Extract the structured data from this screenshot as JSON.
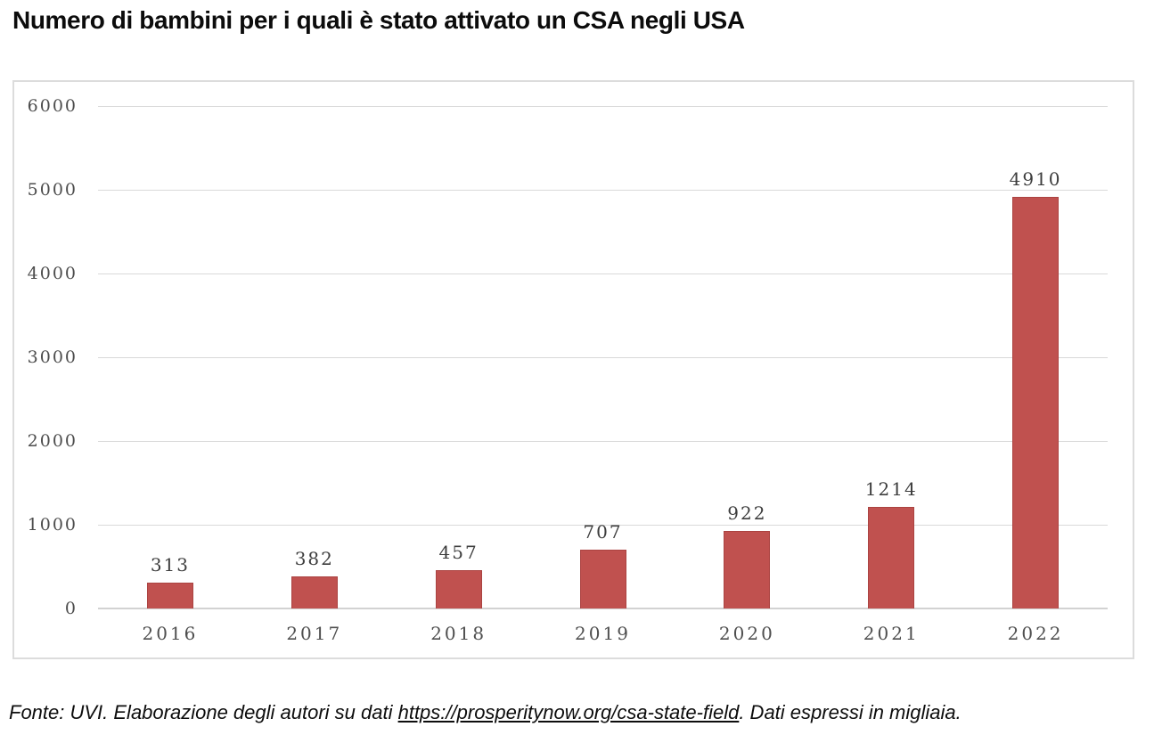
{
  "page": {
    "footer": {
      "prefix": "Fonte: UVI. Elaborazione degli autori su dati ",
      "link": "https://prosperitynow.org/csa-state-field",
      "suffix": ". Dati espressi in migliaia."
    }
  },
  "chart_data": {
    "type": "bar",
    "title": "Numero di bambini per i quali è stato attivato un CSA negli USA",
    "categories": [
      "2016",
      "2017",
      "2018",
      "2019",
      "2020",
      "2021",
      "2022"
    ],
    "values": [
      313,
      382,
      457,
      707,
      922,
      1214,
      4910
    ],
    "data_labels": [
      313,
      382,
      457,
      707,
      922,
      1214,
      4910
    ],
    "xlabel": "",
    "ylabel": "",
    "ylim": [
      0,
      6000
    ],
    "yticks": [
      0,
      1000,
      2000,
      3000,
      4000,
      5000,
      6000
    ],
    "grid": true,
    "legend": false,
    "bar_color": "#c0514f",
    "bar_border_color": "#ab4341",
    "gridline_color": "#d9d9d9",
    "axis_label_color": "#4d4d4d",
    "data_label_color": "#3d3d3d"
  }
}
